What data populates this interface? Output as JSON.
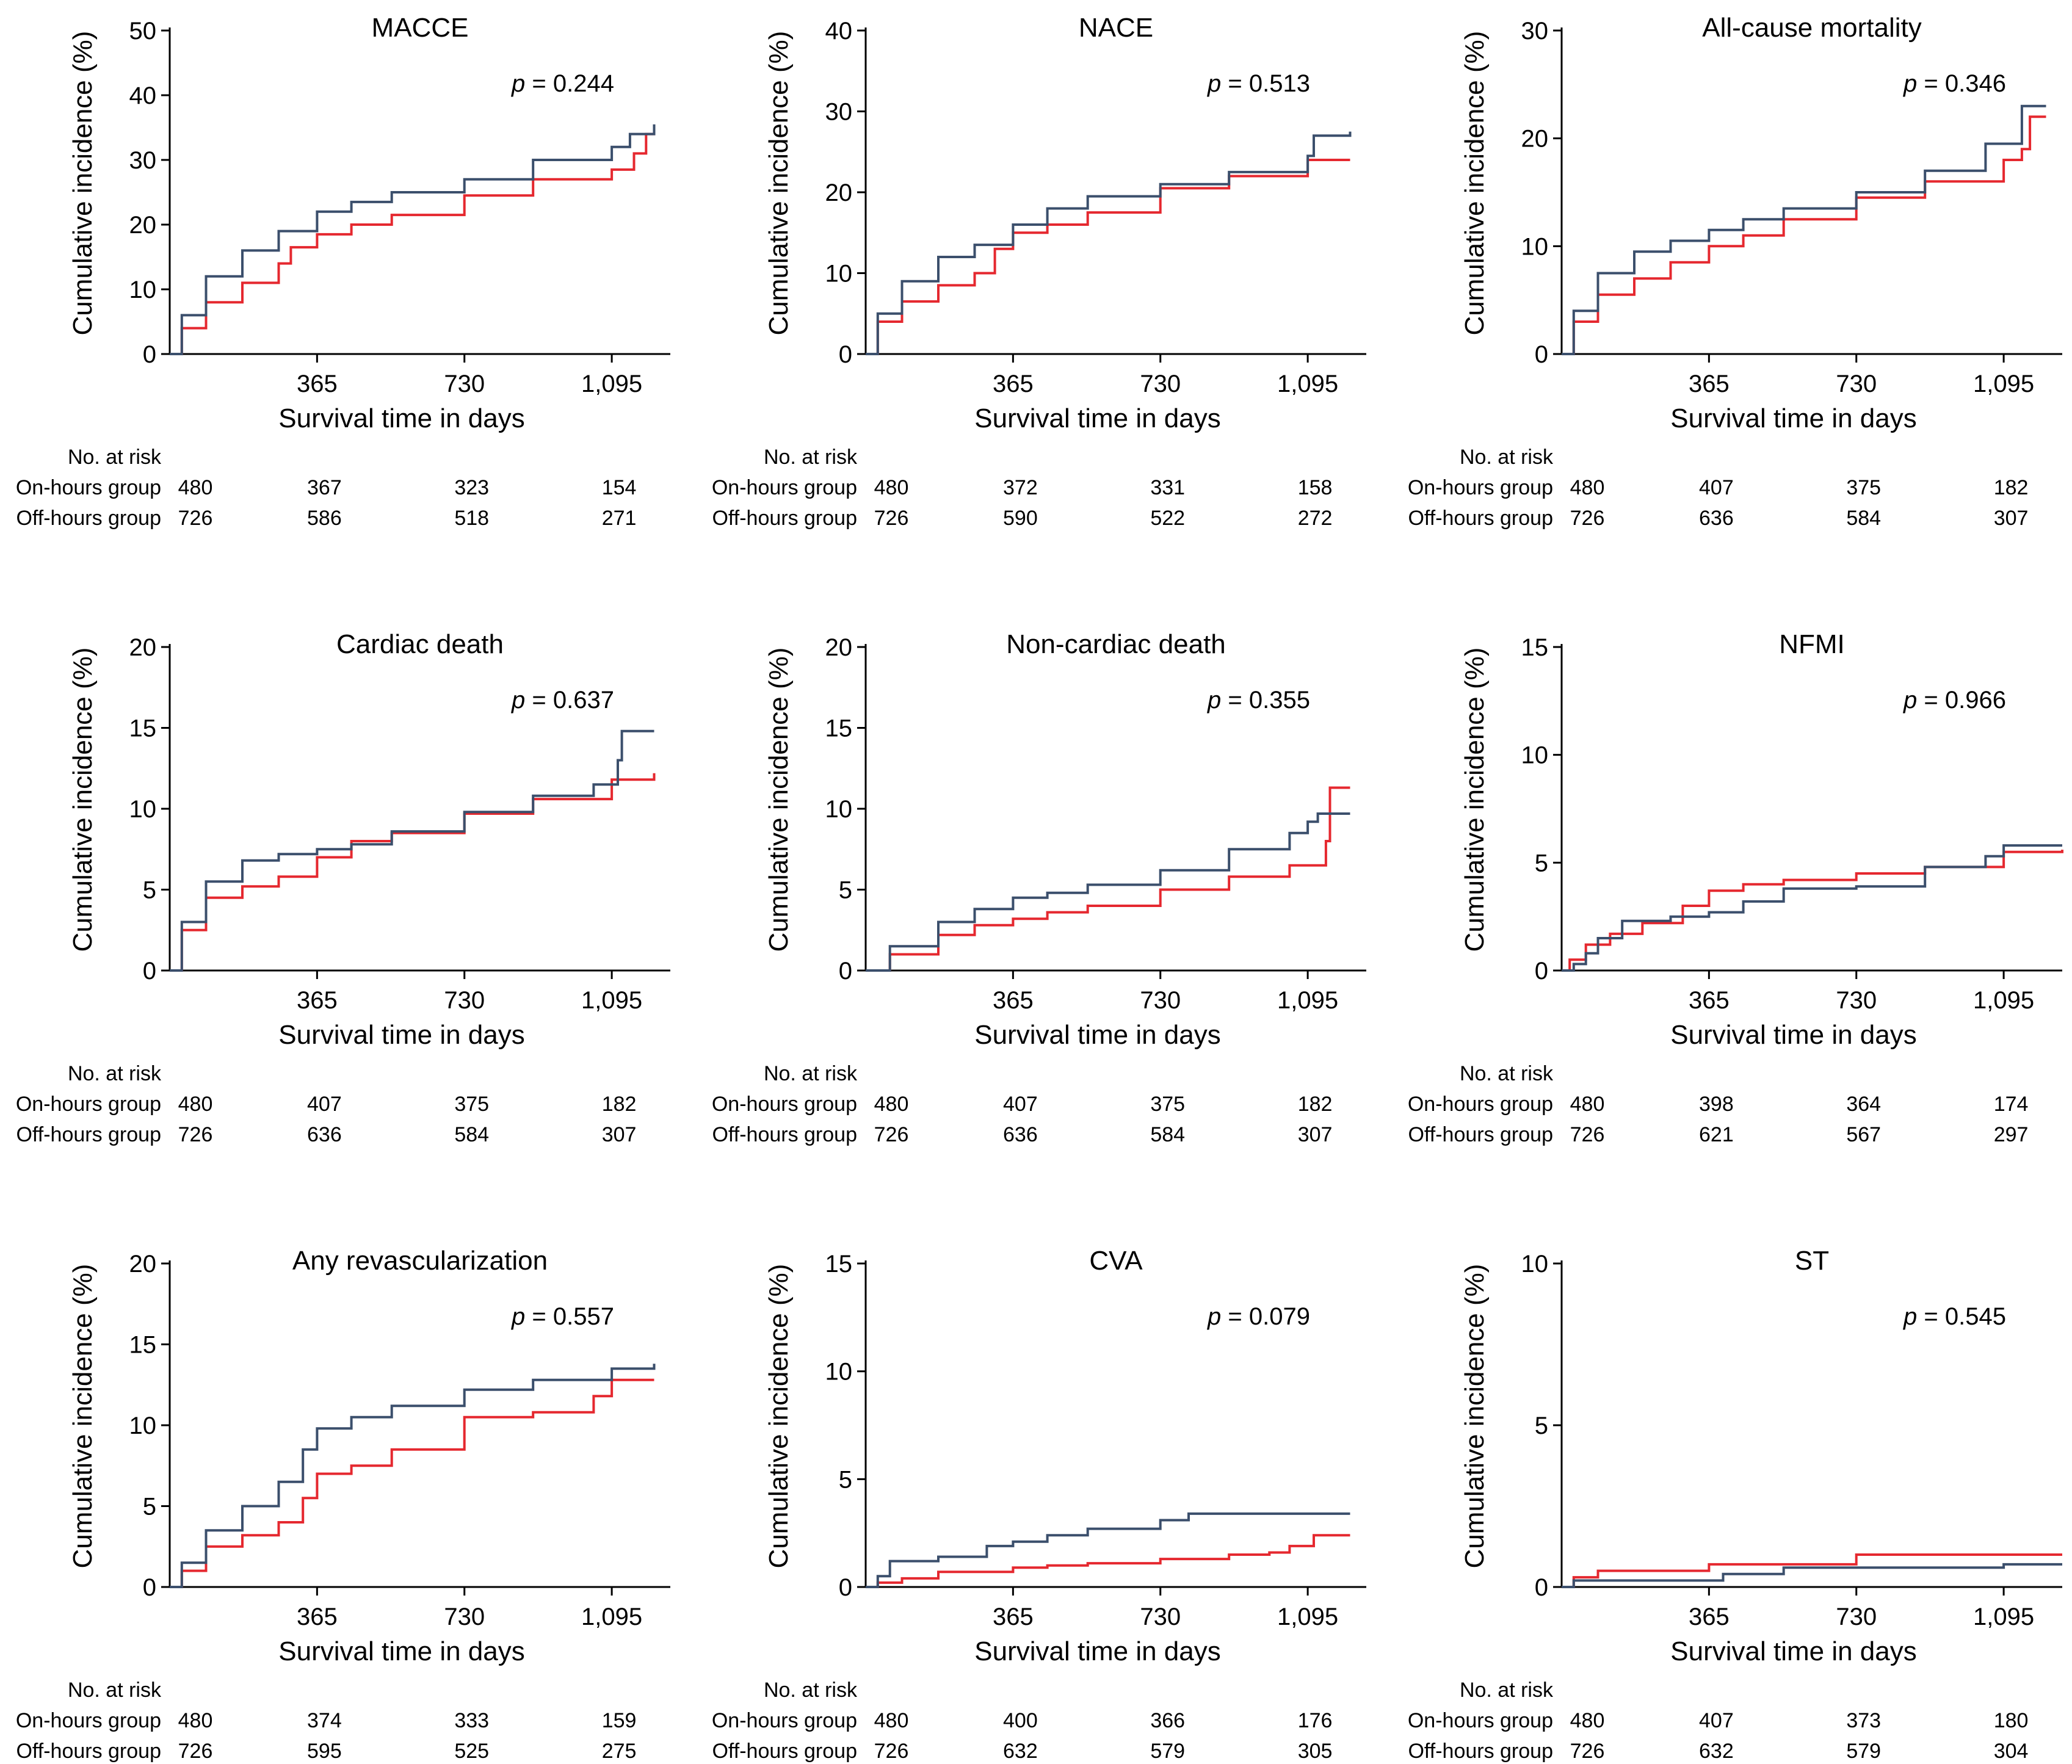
{
  "shared": {
    "xlabel": "Survival time in days",
    "ylabel": "Cumulative incidence (%)",
    "x_ticks": [
      365,
      730,
      1095
    ],
    "x_tick_labels": [
      "365",
      "730",
      "1,095"
    ],
    "xlim": [
      0,
      1240
    ],
    "risk_header": "No. at risk",
    "group_labels": [
      "On-hours group",
      "Off-hours group"
    ],
    "risk_times": [
      0,
      365,
      730,
      1095
    ],
    "p_prefix": "p",
    "series_colors": {
      "On-hours group": "#3b4f6c",
      "Off-hours group": "#e5282f"
    }
  },
  "chart_data": [
    {
      "type": "line",
      "title": "MACCE",
      "p_value": "= 0.244",
      "xlabel": "Survival time in days",
      "ylabel": "Cumulative incidence (%)",
      "ylim": [
        0,
        50
      ],
      "y_ticks": [
        0,
        10,
        20,
        30,
        40,
        50
      ],
      "grid": false,
      "series": [
        {
          "name": "On-hours group",
          "x": [
            0,
            30,
            90,
            180,
            270,
            365,
            450,
            550,
            730,
            900,
            1095,
            1140,
            1200
          ],
          "y": [
            0,
            6,
            12,
            16,
            19,
            22,
            23.5,
            25,
            27,
            30,
            32,
            34,
            35.5
          ]
        },
        {
          "name": "Off-hours group",
          "x": [
            0,
            30,
            90,
            180,
            270,
            300,
            365,
            450,
            550,
            730,
            900,
            1095,
            1150,
            1180,
            1200
          ],
          "y": [
            0,
            4,
            8,
            11,
            14,
            16.5,
            18.5,
            20,
            21.5,
            24.5,
            27,
            28.5,
            31,
            34,
            34.5
          ]
        }
      ],
      "risk": {
        "On-hours group": [
          "480",
          "367",
          "323",
          "154"
        ],
        "Off-hours group": [
          "726",
          "586",
          "518",
          "271"
        ]
      }
    },
    {
      "type": "line",
      "title": "NACE",
      "p_value": "= 0.513",
      "xlabel": "Survival time in days",
      "ylabel": "Cumulative incidence (%)",
      "ylim": [
        0,
        40
      ],
      "y_ticks": [
        0,
        10,
        20,
        30,
        40
      ],
      "grid": false,
      "series": [
        {
          "name": "On-hours group",
          "x": [
            0,
            30,
            90,
            180,
            270,
            365,
            450,
            550,
            730,
            900,
            1095,
            1110,
            1200
          ],
          "y": [
            0,
            5,
            9,
            12,
            13.5,
            16,
            18,
            19.5,
            21,
            22.5,
            24.5,
            27,
            27.5
          ]
        },
        {
          "name": "Off-hours group",
          "x": [
            0,
            30,
            90,
            180,
            270,
            320,
            365,
            450,
            550,
            730,
            900,
            1095,
            1200
          ],
          "y": [
            0,
            4,
            6.5,
            8.5,
            10,
            13,
            15,
            16,
            17.5,
            20.5,
            22,
            24,
            24
          ]
        }
      ],
      "risk": {
        "On-hours group": [
          "480",
          "372",
          "331",
          "158"
        ],
        "Off-hours group": [
          "726",
          "590",
          "522",
          "272"
        ]
      }
    },
    {
      "type": "line",
      "title": "All-cause mortality",
      "p_value": "= 0.346",
      "xlabel": "Survival time in days",
      "ylabel": "Cumulative incidence (%)",
      "ylim": [
        0,
        30
      ],
      "y_ticks": [
        0,
        10,
        20,
        30
      ],
      "grid": false,
      "series": [
        {
          "name": "On-hours group",
          "x": [
            0,
            30,
            90,
            180,
            270,
            365,
            450,
            550,
            730,
            900,
            1050,
            1140,
            1200
          ],
          "y": [
            0,
            4,
            7.5,
            9.5,
            10.5,
            11.5,
            12.5,
            13.5,
            15,
            17,
            19.5,
            23,
            23
          ]
        },
        {
          "name": "Off-hours group",
          "x": [
            0,
            30,
            90,
            180,
            270,
            365,
            450,
            550,
            730,
            900,
            1095,
            1140,
            1160,
            1200
          ],
          "y": [
            0,
            3,
            5.5,
            7,
            8.5,
            10,
            11,
            12.5,
            14.5,
            16,
            18,
            19,
            22,
            22
          ]
        }
      ],
      "risk": {
        "On-hours group": [
          "480",
          "407",
          "375",
          "182"
        ],
        "Off-hours group": [
          "726",
          "636",
          "584",
          "307"
        ]
      }
    },
    {
      "type": "line",
      "title": "Cardiac death",
      "p_value": "= 0.637",
      "xlabel": "Survival time in days",
      "ylabel": "Cumulative incidence (%)",
      "ylim": [
        0,
        20
      ],
      "y_ticks": [
        0,
        5,
        10,
        15,
        20
      ],
      "grid": false,
      "series": [
        {
          "name": "On-hours group",
          "x": [
            0,
            30,
            90,
            180,
            270,
            365,
            450,
            550,
            730,
            900,
            1050,
            1110,
            1120,
            1200
          ],
          "y": [
            0,
            3,
            5.5,
            6.8,
            7.2,
            7.5,
            7.8,
            8.6,
            9.8,
            10.8,
            11.5,
            13,
            14.8,
            14.8
          ]
        },
        {
          "name": "Off-hours group",
          "x": [
            0,
            30,
            90,
            180,
            270,
            365,
            450,
            550,
            730,
            900,
            1095,
            1200
          ],
          "y": [
            0,
            2.5,
            4.5,
            5.2,
            5.8,
            7,
            8,
            8.5,
            9.7,
            10.6,
            11.8,
            12.2
          ]
        }
      ],
      "risk": {
        "On-hours group": [
          "480",
          "407",
          "375",
          "182"
        ],
        "Off-hours group": [
          "726",
          "636",
          "584",
          "307"
        ]
      }
    },
    {
      "type": "line",
      "title": "Non-cardiac death",
      "p_value": "= 0.355",
      "xlabel": "Survival time in days",
      "ylabel": "Cumulative incidence (%)",
      "ylim": [
        0,
        20
      ],
      "y_ticks": [
        0,
        5,
        10,
        15,
        20
      ],
      "grid": false,
      "series": [
        {
          "name": "On-hours group",
          "x": [
            0,
            60,
            180,
            270,
            365,
            450,
            550,
            730,
            900,
            1050,
            1095,
            1120,
            1200
          ],
          "y": [
            0,
            1.5,
            3,
            3.8,
            4.5,
            4.8,
            5.3,
            6.2,
            7.5,
            8.5,
            9.2,
            9.7,
            9.7
          ]
        },
        {
          "name": "Off-hours group",
          "x": [
            0,
            60,
            180,
            270,
            365,
            450,
            550,
            730,
            900,
            1050,
            1140,
            1150,
            1200
          ],
          "y": [
            0,
            1,
            2.2,
            2.8,
            3.2,
            3.6,
            4,
            5,
            5.8,
            6.5,
            8,
            11.3,
            11.3
          ]
        }
      ],
      "risk": {
        "On-hours group": [
          "480",
          "407",
          "375",
          "182"
        ],
        "Off-hours group": [
          "726",
          "636",
          "584",
          "307"
        ]
      }
    },
    {
      "type": "line",
      "title": "NFMI",
      "p_value": "= 0.966",
      "xlabel": "Survival time in days",
      "ylabel": "Cumulative incidence (%)",
      "ylim": [
        0,
        15
      ],
      "y_ticks": [
        0,
        5,
        10,
        15
      ],
      "grid": false,
      "series": [
        {
          "name": "On-hours group",
          "x": [
            0,
            30,
            60,
            90,
            150,
            270,
            365,
            450,
            550,
            730,
            900,
            1050,
            1095,
            1240
          ],
          "y": [
            0,
            0.3,
            0.8,
            1.5,
            2.3,
            2.5,
            2.7,
            3.2,
            3.8,
            3.9,
            4.8,
            5.3,
            5.8,
            5.8
          ]
        },
        {
          "name": "Off-hours group",
          "x": [
            0,
            20,
            60,
            120,
            200,
            300,
            365,
            450,
            550,
            730,
            900,
            1095,
            1240
          ],
          "y": [
            0,
            0.5,
            1.2,
            1.7,
            2.2,
            3,
            3.7,
            4,
            4.2,
            4.5,
            4.8,
            5.5,
            5.6
          ]
        }
      ],
      "risk": {
        "On-hours group": [
          "480",
          "398",
          "364",
          "174"
        ],
        "Off-hours group": [
          "726",
          "621",
          "567",
          "297"
        ]
      }
    },
    {
      "type": "line",
      "title": "Any revascularization",
      "p_value": "= 0.557",
      "xlabel": "Survival time in days",
      "ylabel": "Cumulative incidence (%)",
      "ylim": [
        0,
        20
      ],
      "y_ticks": [
        0,
        5,
        10,
        15,
        20
      ],
      "grid": false,
      "series": [
        {
          "name": "On-hours group",
          "x": [
            0,
            30,
            90,
            180,
            270,
            330,
            365,
            450,
            550,
            730,
            900,
            1095,
            1200
          ],
          "y": [
            0,
            1.5,
            3.5,
            5,
            6.5,
            8.5,
            9.8,
            10.5,
            11.2,
            12.2,
            12.8,
            13.5,
            13.8
          ]
        },
        {
          "name": "Off-hours group",
          "x": [
            0,
            30,
            90,
            180,
            270,
            330,
            365,
            450,
            550,
            730,
            900,
            1050,
            1095,
            1200
          ],
          "y": [
            0,
            1,
            2.5,
            3.2,
            4,
            5.5,
            7,
            7.5,
            8.5,
            10.5,
            10.8,
            11.8,
            12.8,
            12.8
          ]
        }
      ],
      "risk": {
        "On-hours group": [
          "480",
          "374",
          "333",
          "159"
        ],
        "Off-hours group": [
          "726",
          "595",
          "525",
          "275"
        ]
      }
    },
    {
      "type": "line",
      "title": "CVA",
      "p_value": "= 0.079",
      "xlabel": "Survival time in days",
      "ylabel": "Cumulative incidence (%)",
      "ylim": [
        0,
        15
      ],
      "y_ticks": [
        0,
        5,
        10,
        15
      ],
      "grid": false,
      "series": [
        {
          "name": "On-hours group",
          "x": [
            0,
            30,
            60,
            180,
            300,
            365,
            450,
            550,
            730,
            800,
            1095,
            1200
          ],
          "y": [
            0,
            0.5,
            1.2,
            1.4,
            1.9,
            2.1,
            2.4,
            2.7,
            3.1,
            3.4,
            3.4,
            3.4
          ]
        },
        {
          "name": "Off-hours group",
          "x": [
            0,
            30,
            90,
            180,
            365,
            450,
            550,
            730,
            900,
            1000,
            1050,
            1110,
            1200
          ],
          "y": [
            0,
            0.2,
            0.4,
            0.7,
            0.9,
            1,
            1.1,
            1.3,
            1.5,
            1.6,
            1.9,
            2.4,
            2.4
          ]
        }
      ],
      "risk": {
        "On-hours group": [
          "480",
          "400",
          "366",
          "176"
        ],
        "Off-hours group": [
          "726",
          "632",
          "579",
          "305"
        ]
      }
    },
    {
      "type": "line",
      "title": "ST",
      "p_value": "= 0.545",
      "xlabel": "Survival time in days",
      "ylabel": "Cumulative incidence (%)",
      "ylim": [
        0,
        10
      ],
      "y_ticks": [
        0,
        5,
        10
      ],
      "grid": false,
      "series": [
        {
          "name": "On-hours group",
          "x": [
            0,
            30,
            400,
            550,
            1095,
            1240
          ],
          "y": [
            0,
            0.2,
            0.4,
            0.6,
            0.7,
            0.7
          ]
        },
        {
          "name": "Off-hours group",
          "x": [
            0,
            30,
            90,
            365,
            730,
            1095,
            1240
          ],
          "y": [
            0,
            0.3,
            0.5,
            0.7,
            1,
            1,
            1
          ]
        }
      ],
      "risk": {
        "On-hours group": [
          "480",
          "407",
          "373",
          "180"
        ],
        "Off-hours group": [
          "726",
          "632",
          "579",
          "304"
        ]
      }
    }
  ]
}
